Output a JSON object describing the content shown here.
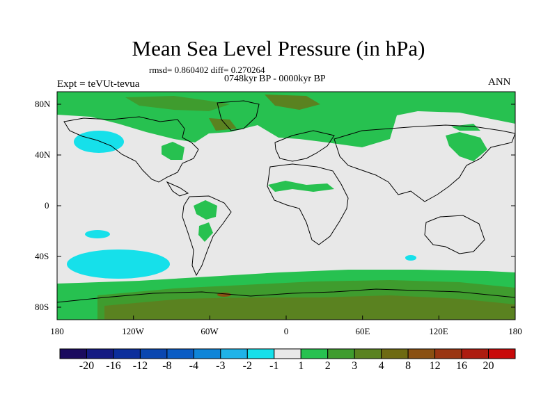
{
  "title": "Mean Sea Level Pressure (in hPa)",
  "stats": "rmsd= 0.860402 diff= 0.270264",
  "period": "0748kyr BP - 0000kyr BP",
  "experiment": "Expt = teVUt-tevua",
  "season": "ANN",
  "lat_ticks": [
    "80N",
    "40N",
    "0",
    "40S",
    "80S"
  ],
  "lon_ticks": [
    "180",
    "120W",
    "60W",
    "0",
    "60E",
    "120E",
    "180"
  ],
  "colorbar": {
    "colors": [
      "#1a0a5e",
      "#141a82",
      "#0c2e9c",
      "#0a47b0",
      "#0a5cc4",
      "#0f85d8",
      "#1fb3e8",
      "#16e0ea",
      "#e8e8e8",
      "#27c150",
      "#3f9c2e",
      "#5a8220",
      "#6e6a12",
      "#8a5012",
      "#9a3512",
      "#ad1c10",
      "#c80a0a"
    ],
    "labels": [
      "-20",
      "-16",
      "-12",
      "-8",
      "-4",
      "-3",
      "-2",
      "-1",
      "1",
      "2",
      "3",
      "4",
      "8",
      "12",
      "16",
      "20"
    ]
  },
  "palette": {
    "neutral": "#e8e8e8",
    "green_light": "#27c150",
    "green_mid": "#3f9c2e",
    "olive": "#5a8220",
    "brown": "#8a5012",
    "cyan": "#16e0ea"
  }
}
